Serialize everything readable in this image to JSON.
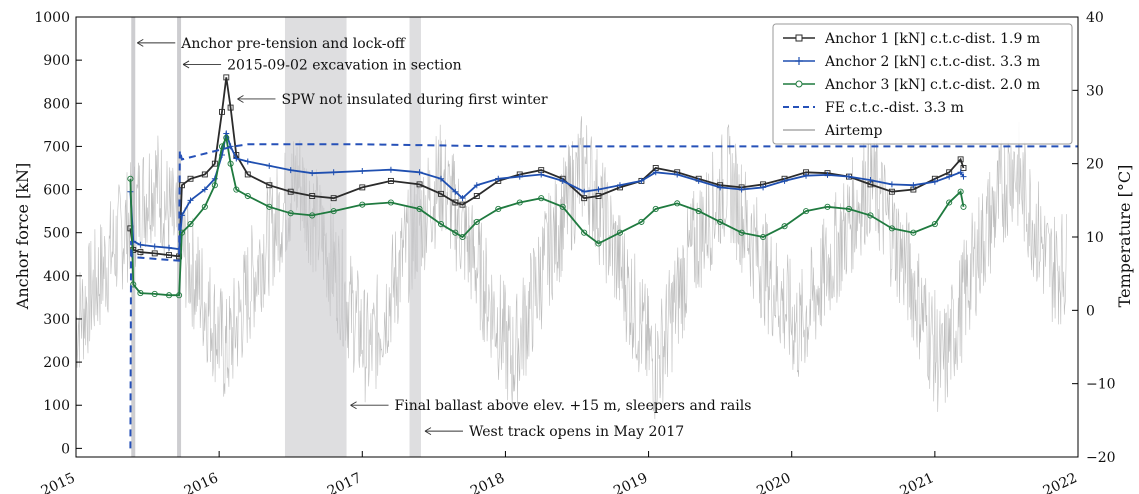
{
  "chart_data": {
    "type": "line",
    "xlabel": "",
    "ylabel": "Anchor force [kN]",
    "y2label": "Temperature [°C]",
    "xlim": [
      2015,
      2022
    ],
    "ylim": [
      -20,
      1000
    ],
    "y2lim": [
      -20,
      40
    ],
    "x_ticks": [
      "2015",
      "2016",
      "2017",
      "2018",
      "2019",
      "2020",
      "2021",
      "2022"
    ],
    "y_ticks": [
      0,
      100,
      200,
      300,
      400,
      500,
      600,
      700,
      800,
      900,
      1000
    ],
    "y2_ticks": [
      -20,
      -10,
      0,
      10,
      20,
      30,
      40
    ],
    "legend_position": "top-right",
    "grid": false,
    "series": [
      {
        "name": "Anchor 1 [kN] c.t.c-dist. 1.9 m",
        "color": "#2b2b2b",
        "marker": "square",
        "x": [
          2015.38,
          2015.4,
          2015.45,
          2015.55,
          2015.65,
          2015.72,
          2015.74,
          2015.8,
          2015.9,
          2015.97,
          2016.02,
          2016.05,
          2016.08,
          2016.12,
          2016.2,
          2016.35,
          2016.5,
          2016.65,
          2016.8,
          2017.0,
          2017.2,
          2017.4,
          2017.55,
          2017.65,
          2017.7,
          2017.8,
          2017.95,
          2018.1,
          2018.25,
          2018.4,
          2018.55,
          2018.65,
          2018.8,
          2018.95,
          2019.05,
          2019.2,
          2019.35,
          2019.5,
          2019.65,
          2019.8,
          2019.95,
          2020.1,
          2020.25,
          2020.4,
          2020.55,
          2020.7,
          2020.85,
          2021.0,
          2021.1,
          2021.18,
          2021.2
        ],
        "y": [
          510,
          460,
          455,
          452,
          448,
          445,
          610,
          625,
          635,
          660,
          780,
          860,
          790,
          680,
          635,
          610,
          595,
          585,
          580,
          605,
          620,
          612,
          590,
          570,
          565,
          585,
          620,
          635,
          645,
          625,
          580,
          585,
          605,
          620,
          650,
          640,
          625,
          610,
          605,
          612,
          625,
          640,
          638,
          630,
          612,
          595,
          600,
          625,
          640,
          670,
          650
        ]
      },
      {
        "name": "Anchor 2 [kN] c.t.c-dist. 3.3 m",
        "color": "#1f4fb0",
        "marker": "plus",
        "x": [
          2015.38,
          2015.4,
          2015.45,
          2015.55,
          2015.65,
          2015.72,
          2015.74,
          2015.8,
          2015.9,
          2015.97,
          2016.02,
          2016.05,
          2016.08,
          2016.12,
          2016.2,
          2016.35,
          2016.5,
          2016.65,
          2016.8,
          2017.0,
          2017.2,
          2017.4,
          2017.55,
          2017.65,
          2017.7,
          2017.8,
          2017.95,
          2018.1,
          2018.25,
          2018.4,
          2018.55,
          2018.65,
          2018.8,
          2018.95,
          2019.05,
          2019.2,
          2019.35,
          2019.5,
          2019.65,
          2019.8,
          2019.95,
          2020.1,
          2020.25,
          2020.4,
          2020.55,
          2020.7,
          2020.85,
          2021.0,
          2021.1,
          2021.18,
          2021.2
        ],
        "y": [
          595,
          480,
          472,
          468,
          465,
          462,
          540,
          575,
          600,
          625,
          680,
          730,
          700,
          672,
          665,
          655,
          645,
          638,
          640,
          643,
          646,
          640,
          625,
          595,
          580,
          610,
          625,
          630,
          635,
          620,
          595,
          600,
          610,
          620,
          640,
          635,
          620,
          605,
          600,
          605,
          620,
          632,
          634,
          630,
          622,
          612,
          610,
          618,
          630,
          640,
          630
        ]
      },
      {
        "name": "Anchor 3 [kN] c.t.c-dist. 2.0 m",
        "color": "#1f7a3f",
        "marker": "circle",
        "x": [
          2015.38,
          2015.4,
          2015.45,
          2015.55,
          2015.65,
          2015.72,
          2015.74,
          2015.8,
          2015.9,
          2015.97,
          2016.02,
          2016.05,
          2016.08,
          2016.12,
          2016.2,
          2016.35,
          2016.5,
          2016.65,
          2016.8,
          2017.0,
          2017.2,
          2017.4,
          2017.55,
          2017.65,
          2017.7,
          2017.8,
          2017.95,
          2018.1,
          2018.25,
          2018.4,
          2018.55,
          2018.65,
          2018.8,
          2018.95,
          2019.05,
          2019.2,
          2019.35,
          2019.5,
          2019.65,
          2019.8,
          2019.95,
          2020.1,
          2020.25,
          2020.4,
          2020.55,
          2020.7,
          2020.85,
          2021.0,
          2021.1,
          2021.18,
          2021.2
        ],
        "y": [
          625,
          380,
          360,
          358,
          355,
          355,
          500,
          520,
          560,
          610,
          700,
          720,
          660,
          600,
          585,
          560,
          545,
          540,
          550,
          565,
          570,
          555,
          520,
          500,
          490,
          525,
          555,
          570,
          580,
          560,
          500,
          475,
          500,
          525,
          555,
          568,
          550,
          525,
          500,
          490,
          515,
          550,
          560,
          555,
          540,
          510,
          500,
          520,
          570,
          595,
          560
        ]
      },
      {
        "name": "FE c.t.c.-dist. 3.3 m",
        "color": "#2651b8",
        "dashed": true,
        "x": [
          2015.38,
          2015.385,
          2015.39,
          2015.41,
          2015.72,
          2015.725,
          2015.74,
          2016.1,
          2016.2,
          2017.0,
          2018.0,
          2019.0,
          2020.0,
          2021.0,
          2022.0
        ],
        "y": [
          0,
          480,
          445,
          443,
          435,
          690,
          670,
          700,
          705,
          705,
          700,
          700,
          700,
          700,
          700
        ]
      },
      {
        "name": "Airtemp",
        "color": "#a8a8a8",
        "axis": "y2",
        "x": [
          2015.0,
          2015.25,
          2015.55,
          2015.8,
          2016.05,
          2016.3,
          2016.55,
          2016.8,
          2017.05,
          2017.3,
          2017.55,
          2017.8,
          2018.05,
          2018.3,
          2018.55,
          2018.8,
          2019.05,
          2019.3,
          2019.55,
          2019.8,
          2020.05,
          2020.3,
          2020.55,
          2020.8,
          2021.05,
          2021.3,
          2021.55,
          2021.8
        ],
        "y": [
          -2,
          8,
          18,
          6,
          -6,
          8,
          18,
          6,
          -6,
          8,
          18,
          6,
          -7,
          8,
          20,
          6,
          -8,
          8,
          18,
          6,
          -3,
          8,
          18,
          6,
          -8,
          8,
          20,
          6
        ]
      }
    ],
    "shaded_periods": [
      [
        2016.46,
        2016.89
      ],
      [
        2017.33,
        2017.41
      ]
    ],
    "event_lines": [
      2015.4,
      2015.72
    ],
    "annotations": [
      {
        "text": "Anchor pre-tension and lock-off",
        "x": 2015.4,
        "y": 940
      },
      {
        "text": "2015-09-02 excavation in section",
        "x": 2015.72,
        "y": 890
      },
      {
        "text": "SPW not insulated during first winter",
        "x": 2016.1,
        "y": 810
      },
      {
        "text": "Final ballast above elev. +15 m, sleepers and rails",
        "x": 2016.89,
        "y": 100
      },
      {
        "text": "West track opens in May 2017",
        "x": 2017.41,
        "y": 40
      }
    ]
  }
}
